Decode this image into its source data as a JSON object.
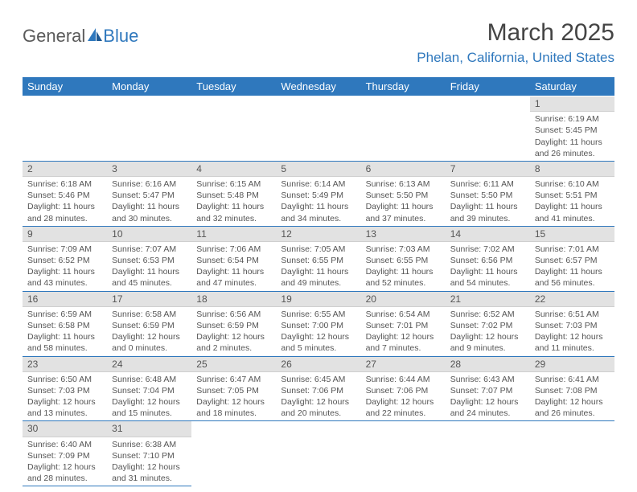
{
  "logo": {
    "text1": "General",
    "text2": "Blue"
  },
  "title": "March 2025",
  "location": "Phelan, California, United States",
  "colors": {
    "header_bg": "#2f78bd",
    "header_text": "#ffffff",
    "body_bg": "#ffffff",
    "daynum_bg": "#e2e2e2",
    "cell_border": "#2f78bd",
    "text": "#555555",
    "title_text": "#444444",
    "location_text": "#2f78bd"
  },
  "typography": {
    "title_fontsize": 30,
    "location_fontsize": 17,
    "day_header_fontsize": 13,
    "cell_fontsize": 10.5,
    "daynum_fontsize": 12
  },
  "day_headers": [
    "Sunday",
    "Monday",
    "Tuesday",
    "Wednesday",
    "Thursday",
    "Friday",
    "Saturday"
  ],
  "weeks": [
    [
      null,
      null,
      null,
      null,
      null,
      null,
      {
        "n": "1",
        "sr": "Sunrise: 6:19 AM",
        "ss": "Sunset: 5:45 PM",
        "dl": "Daylight: 11 hours and 26 minutes."
      }
    ],
    [
      {
        "n": "2",
        "sr": "Sunrise: 6:18 AM",
        "ss": "Sunset: 5:46 PM",
        "dl": "Daylight: 11 hours and 28 minutes."
      },
      {
        "n": "3",
        "sr": "Sunrise: 6:16 AM",
        "ss": "Sunset: 5:47 PM",
        "dl": "Daylight: 11 hours and 30 minutes."
      },
      {
        "n": "4",
        "sr": "Sunrise: 6:15 AM",
        "ss": "Sunset: 5:48 PM",
        "dl": "Daylight: 11 hours and 32 minutes."
      },
      {
        "n": "5",
        "sr": "Sunrise: 6:14 AM",
        "ss": "Sunset: 5:49 PM",
        "dl": "Daylight: 11 hours and 34 minutes."
      },
      {
        "n": "6",
        "sr": "Sunrise: 6:13 AM",
        "ss": "Sunset: 5:50 PM",
        "dl": "Daylight: 11 hours and 37 minutes."
      },
      {
        "n": "7",
        "sr": "Sunrise: 6:11 AM",
        "ss": "Sunset: 5:50 PM",
        "dl": "Daylight: 11 hours and 39 minutes."
      },
      {
        "n": "8",
        "sr": "Sunrise: 6:10 AM",
        "ss": "Sunset: 5:51 PM",
        "dl": "Daylight: 11 hours and 41 minutes."
      }
    ],
    [
      {
        "n": "9",
        "sr": "Sunrise: 7:09 AM",
        "ss": "Sunset: 6:52 PM",
        "dl": "Daylight: 11 hours and 43 minutes."
      },
      {
        "n": "10",
        "sr": "Sunrise: 7:07 AM",
        "ss": "Sunset: 6:53 PM",
        "dl": "Daylight: 11 hours and 45 minutes."
      },
      {
        "n": "11",
        "sr": "Sunrise: 7:06 AM",
        "ss": "Sunset: 6:54 PM",
        "dl": "Daylight: 11 hours and 47 minutes."
      },
      {
        "n": "12",
        "sr": "Sunrise: 7:05 AM",
        "ss": "Sunset: 6:55 PM",
        "dl": "Daylight: 11 hours and 49 minutes."
      },
      {
        "n": "13",
        "sr": "Sunrise: 7:03 AM",
        "ss": "Sunset: 6:55 PM",
        "dl": "Daylight: 11 hours and 52 minutes."
      },
      {
        "n": "14",
        "sr": "Sunrise: 7:02 AM",
        "ss": "Sunset: 6:56 PM",
        "dl": "Daylight: 11 hours and 54 minutes."
      },
      {
        "n": "15",
        "sr": "Sunrise: 7:01 AM",
        "ss": "Sunset: 6:57 PM",
        "dl": "Daylight: 11 hours and 56 minutes."
      }
    ],
    [
      {
        "n": "16",
        "sr": "Sunrise: 6:59 AM",
        "ss": "Sunset: 6:58 PM",
        "dl": "Daylight: 11 hours and 58 minutes."
      },
      {
        "n": "17",
        "sr": "Sunrise: 6:58 AM",
        "ss": "Sunset: 6:59 PM",
        "dl": "Daylight: 12 hours and 0 minutes."
      },
      {
        "n": "18",
        "sr": "Sunrise: 6:56 AM",
        "ss": "Sunset: 6:59 PM",
        "dl": "Daylight: 12 hours and 2 minutes."
      },
      {
        "n": "19",
        "sr": "Sunrise: 6:55 AM",
        "ss": "Sunset: 7:00 PM",
        "dl": "Daylight: 12 hours and 5 minutes."
      },
      {
        "n": "20",
        "sr": "Sunrise: 6:54 AM",
        "ss": "Sunset: 7:01 PM",
        "dl": "Daylight: 12 hours and 7 minutes."
      },
      {
        "n": "21",
        "sr": "Sunrise: 6:52 AM",
        "ss": "Sunset: 7:02 PM",
        "dl": "Daylight: 12 hours and 9 minutes."
      },
      {
        "n": "22",
        "sr": "Sunrise: 6:51 AM",
        "ss": "Sunset: 7:03 PM",
        "dl": "Daylight: 12 hours and 11 minutes."
      }
    ],
    [
      {
        "n": "23",
        "sr": "Sunrise: 6:50 AM",
        "ss": "Sunset: 7:03 PM",
        "dl": "Daylight: 12 hours and 13 minutes."
      },
      {
        "n": "24",
        "sr": "Sunrise: 6:48 AM",
        "ss": "Sunset: 7:04 PM",
        "dl": "Daylight: 12 hours and 15 minutes."
      },
      {
        "n": "25",
        "sr": "Sunrise: 6:47 AM",
        "ss": "Sunset: 7:05 PM",
        "dl": "Daylight: 12 hours and 18 minutes."
      },
      {
        "n": "26",
        "sr": "Sunrise: 6:45 AM",
        "ss": "Sunset: 7:06 PM",
        "dl": "Daylight: 12 hours and 20 minutes."
      },
      {
        "n": "27",
        "sr": "Sunrise: 6:44 AM",
        "ss": "Sunset: 7:06 PM",
        "dl": "Daylight: 12 hours and 22 minutes."
      },
      {
        "n": "28",
        "sr": "Sunrise: 6:43 AM",
        "ss": "Sunset: 7:07 PM",
        "dl": "Daylight: 12 hours and 24 minutes."
      },
      {
        "n": "29",
        "sr": "Sunrise: 6:41 AM",
        "ss": "Sunset: 7:08 PM",
        "dl": "Daylight: 12 hours and 26 minutes."
      }
    ],
    [
      {
        "n": "30",
        "sr": "Sunrise: 6:40 AM",
        "ss": "Sunset: 7:09 PM",
        "dl": "Daylight: 12 hours and 28 minutes."
      },
      {
        "n": "31",
        "sr": "Sunrise: 6:38 AM",
        "ss": "Sunset: 7:10 PM",
        "dl": "Daylight: 12 hours and 31 minutes."
      },
      null,
      null,
      null,
      null,
      null
    ]
  ]
}
